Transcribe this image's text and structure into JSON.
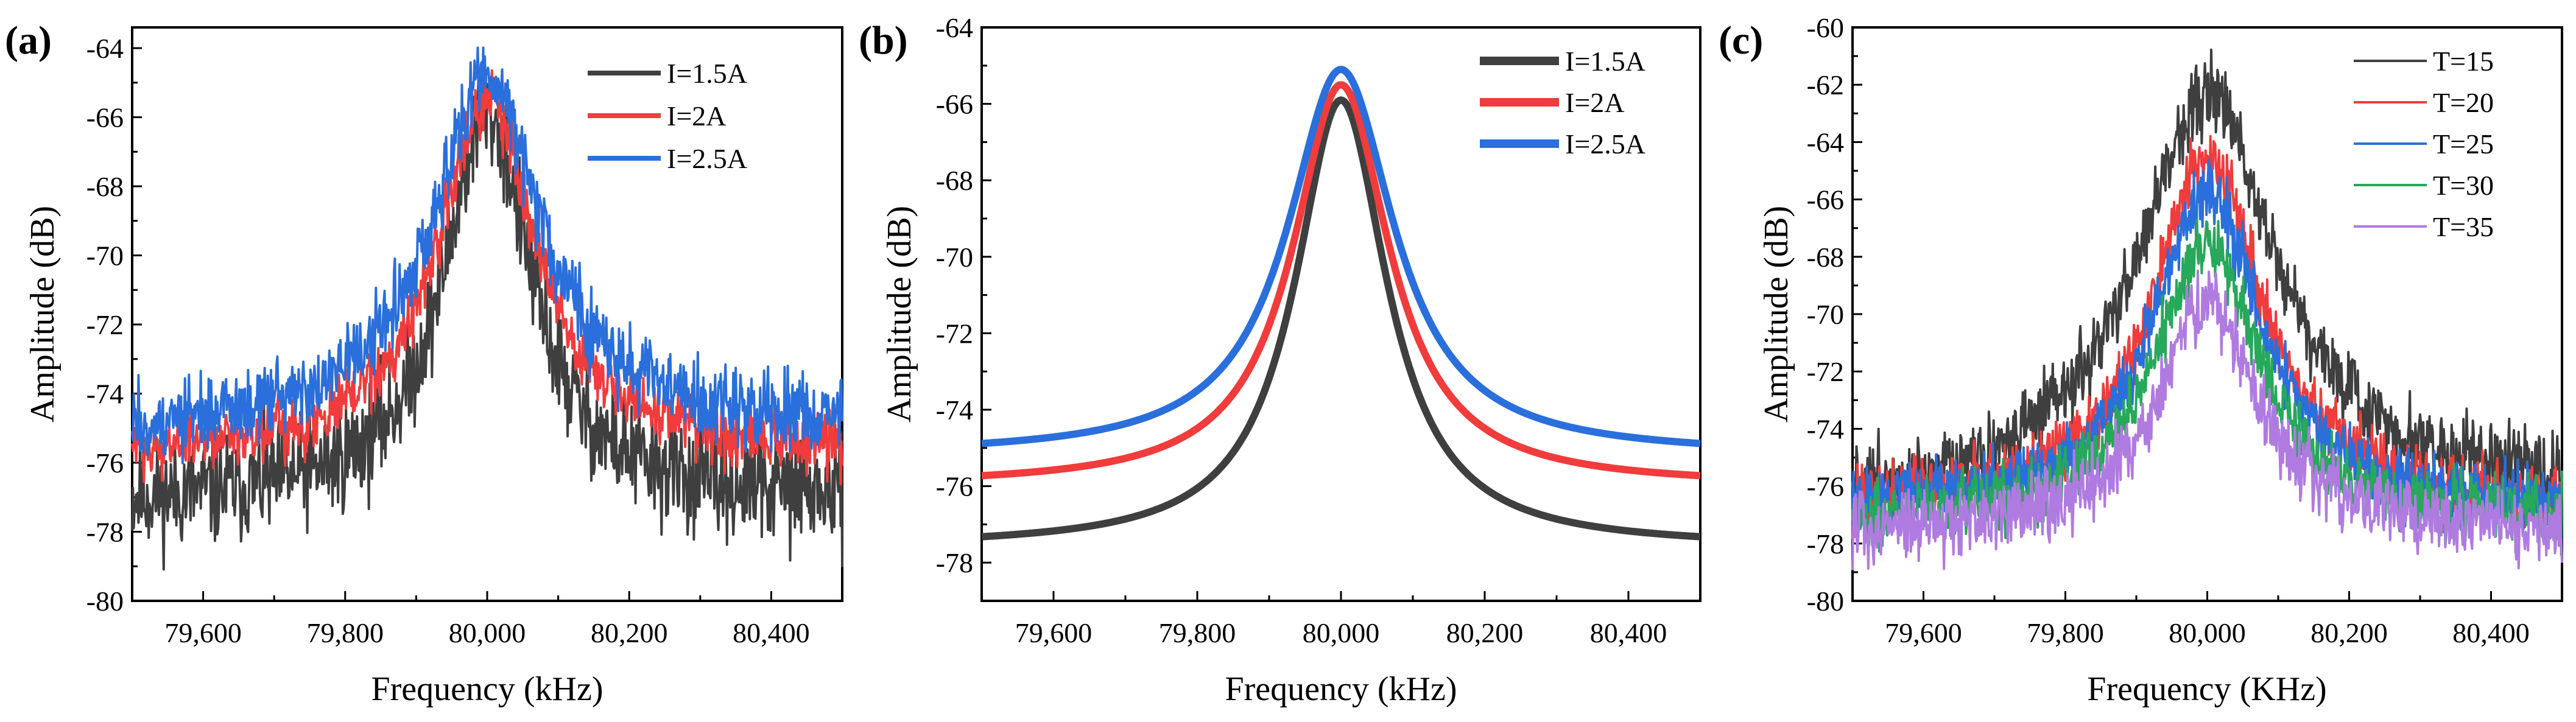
{
  "chart_data": [
    {
      "panel_label": "(a)",
      "type": "line",
      "style": "noisy",
      "xlabel": "Frequency (kHz)",
      "ylabel": "Amplitude (dB)",
      "xlim": [
        79500,
        80500
      ],
      "ylim": [
        -80,
        -63.4
      ],
      "xticks": [
        79600,
        79800,
        80000,
        80200,
        80400
      ],
      "xtick_labels": [
        "79,600",
        "79,800",
        "80,000",
        "80,200",
        "80,400"
      ],
      "yticks": [
        -80,
        -78,
        -76,
        -74,
        -72,
        -70,
        -68,
        -66,
        -64
      ],
      "ytick_labels": [
        "-80",
        "-78",
        "-76",
        "-74",
        "-72",
        "-70",
        "-68",
        "-66",
        "-64"
      ],
      "legend_position": "top-right",
      "series": [
        {
          "name": "I=1.5A",
          "color": "#3f3f3f",
          "center": 80000,
          "peak": -65.9,
          "baseline_left": -77.2,
          "baseline_right": -77.1,
          "hwhm": 75,
          "noise_db": 1.6
        },
        {
          "name": "I=2A",
          "color": "#f03c3c",
          "center": 80000,
          "peak": -65.5,
          "baseline_left": -75.8,
          "baseline_right": -75.7,
          "hwhm": 85,
          "noise_db": 0.9
        },
        {
          "name": "I=2.5A",
          "color": "#2a6fdb",
          "center": 80000,
          "peak": -64.9,
          "baseline_left": -75.2,
          "baseline_right": -75.0,
          "hwhm": 95,
          "noise_db": 1.1
        }
      ]
    },
    {
      "panel_label": "(b)",
      "type": "line",
      "style": "smooth",
      "xlabel": "Frequency (kHz)",
      "ylabel": "Amplitude (dB)",
      "xlim": [
        79500,
        80500
      ],
      "ylim": [
        -79,
        -64
      ],
      "xticks": [
        79600,
        79800,
        80000,
        80200,
        80400
      ],
      "xtick_labels": [
        "79,600",
        "79,800",
        "80,000",
        "80,200",
        "80,400"
      ],
      "yticks": [
        -78,
        -76,
        -74,
        -72,
        -70,
        -68,
        -66,
        -64
      ],
      "ytick_labels": [
        "-78",
        "-76",
        "-74",
        "-72",
        "-70",
        "-68",
        "-66",
        "-64"
      ],
      "legend_position": "top-right",
      "series": [
        {
          "name": "I=1.5A",
          "color": "#3f3f3f",
          "center": 80000,
          "peak": -65.9,
          "baseline_left": -77.6,
          "baseline_right": -77.6,
          "hwhm": 78,
          "noise_db": 0
        },
        {
          "name": "I=2A",
          "color": "#f03c3c",
          "center": 80000,
          "peak": -65.5,
          "baseline_left": -76.0,
          "baseline_right": -76.0,
          "hwhm": 82,
          "noise_db": 0
        },
        {
          "name": "I=2.5A",
          "color": "#2a6fdb",
          "center": 80000,
          "peak": -65.1,
          "baseline_left": -75.2,
          "baseline_right": -75.2,
          "hwhm": 90,
          "noise_db": 0
        }
      ]
    },
    {
      "panel_label": "(c)",
      "type": "line",
      "style": "noisy",
      "xlabel": "Frequency (KHz)",
      "ylabel": "Amplitude (dB)",
      "xlim": [
        79500,
        80500
      ],
      "ylim": [
        -80,
        -60
      ],
      "xticks": [
        79600,
        79800,
        80000,
        80200,
        80400
      ],
      "xtick_labels": [
        "79,600",
        "79,800",
        "80,000",
        "80,200",
        "80,400"
      ],
      "yticks": [
        -80,
        -78,
        -76,
        -74,
        -72,
        -70,
        -68,
        -66,
        -64,
        -62,
        -60
      ],
      "ytick_labels": [
        "-80",
        "-78",
        "-76",
        "-74",
        "-72",
        "-70",
        "-68",
        "-66",
        "-64",
        "-62",
        "-60"
      ],
      "legend_position": "top-right",
      "series": [
        {
          "name": "T=15",
          "color": "#3f3f3f",
          "center": 80000,
          "peak": -62.3,
          "baseline_left": -76.6,
          "baseline_right": -76.3,
          "hwhm": 120,
          "noise_db": 1.3
        },
        {
          "name": "T=20",
          "color": "#f03c3c",
          "center": 80000,
          "peak": -64.6,
          "baseline_left": -76.8,
          "baseline_right": -76.8,
          "hwhm": 95,
          "noise_db": 1.1
        },
        {
          "name": "T=25",
          "color": "#2a6fdb",
          "center": 80000,
          "peak": -65.8,
          "baseline_left": -76.9,
          "baseline_right": -76.9,
          "hwhm": 95,
          "noise_db": 1.1
        },
        {
          "name": "T=30",
          "color": "#27a85a",
          "center": 80000,
          "peak": -67.6,
          "baseline_left": -77.2,
          "baseline_right": -77.2,
          "hwhm": 90,
          "noise_db": 1.1
        },
        {
          "name": "T=35",
          "color": "#b07be0",
          "center": 80000,
          "peak": -69.6,
          "baseline_left": -77.7,
          "baseline_right": -77.6,
          "hwhm": 85,
          "noise_db": 1.2
        }
      ]
    }
  ]
}
